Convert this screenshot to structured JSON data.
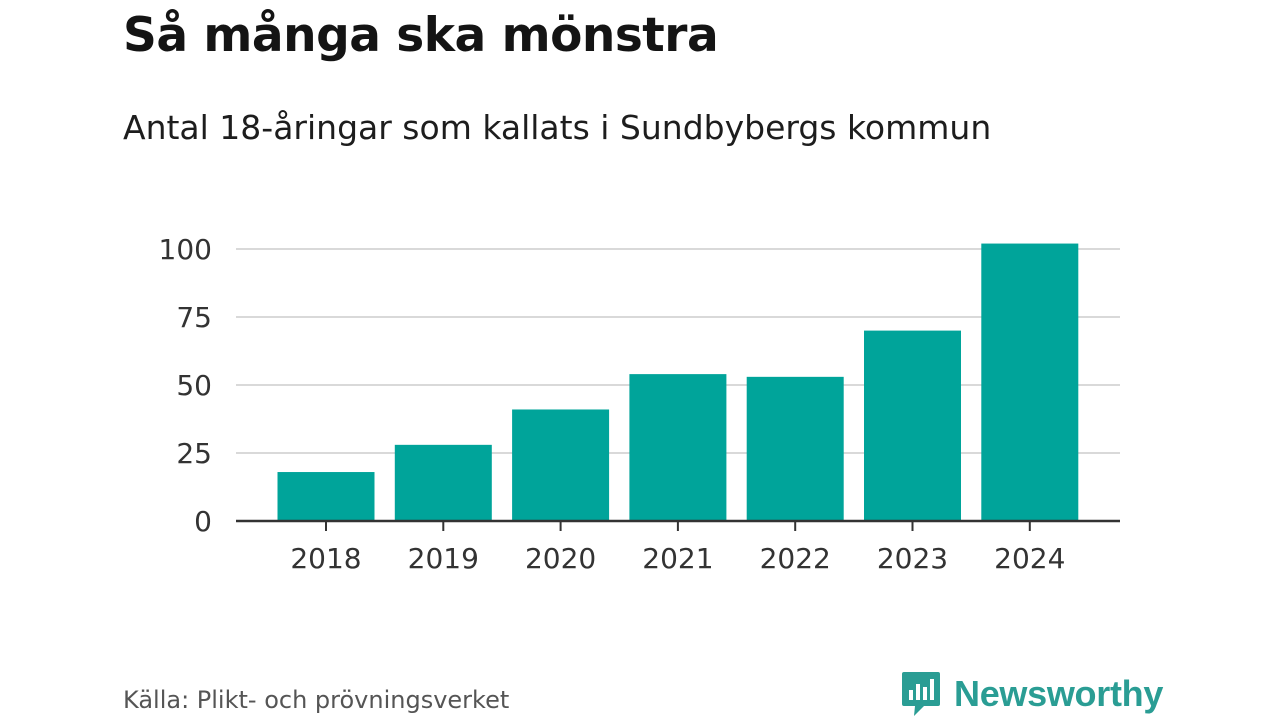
{
  "header": {
    "title": "Så många ska mönstra",
    "subtitle": "Antal 18-åringar som kallats i Sundbybergs kommun"
  },
  "footer": {
    "source": "Källa: Plikt- och prövningsverket",
    "brand": "Newsworthy"
  },
  "colors": {
    "bar": "#00a49a",
    "grid": "#d9d9d9",
    "axis": "#333333",
    "brand": "#2a9d94"
  },
  "chart_data": {
    "type": "bar",
    "title": "Så många ska mönstra",
    "subtitle": "Antal 18-åringar som kallats i Sundbybergs kommun",
    "categories": [
      "2018",
      "2019",
      "2020",
      "2021",
      "2022",
      "2023",
      "2024"
    ],
    "values": [
      18,
      28,
      41,
      54,
      53,
      70,
      102
    ],
    "xlabel": "",
    "ylabel": "",
    "ylim": [
      0,
      100
    ],
    "yticks": [
      "0",
      "25",
      "50",
      "75",
      "100"
    ],
    "grid": true
  }
}
